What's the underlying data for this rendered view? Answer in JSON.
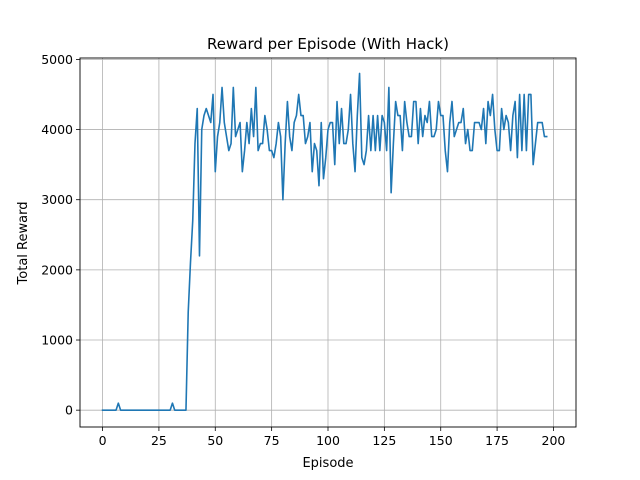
{
  "chart_data": {
    "type": "line",
    "title": "Reward per Episode (With Hack)",
    "xlabel": "Episode",
    "ylabel": "Total Reward",
    "xlim": [
      -10,
      210
    ],
    "ylim": [
      -240,
      5020
    ],
    "xticks": [
      0,
      25,
      50,
      75,
      100,
      125,
      150,
      175,
      200
    ],
    "yticks": [
      0,
      1000,
      2000,
      3000,
      4000,
      5000
    ],
    "grid": true,
    "line_color": "#1f77b4",
    "series": [
      {
        "x_start": 0,
        "values": [
          0,
          0,
          0,
          0,
          0,
          0,
          0,
          100,
          0,
          0,
          0,
          0,
          0,
          0,
          0,
          0,
          0,
          0,
          0,
          0,
          0,
          0,
          0,
          0,
          0,
          0,
          0,
          0,
          0,
          0,
          0,
          100,
          0,
          0,
          0,
          0,
          0,
          0,
          1400,
          2100,
          2700,
          3800,
          4300,
          2200,
          4000,
          4200,
          4300,
          4200,
          4100,
          4500,
          3400,
          3900,
          4100,
          4600,
          4100,
          3900,
          3700,
          3800,
          4600,
          3900,
          4000,
          4100,
          3400,
          3700,
          4100,
          3800,
          4300,
          3900,
          4600,
          3700,
          3800,
          3800,
          4200,
          4000,
          3700,
          3700,
          3600,
          3800,
          4100,
          3900,
          3000,
          3800,
          4400,
          3900,
          3700,
          4100,
          4200,
          4500,
          4200,
          4200,
          3800,
          3900,
          4100,
          3400,
          3800,
          3700,
          3200,
          4100,
          3300,
          3600,
          4000,
          4100,
          4100,
          3500,
          4400,
          3800,
          4300,
          3800,
          3800,
          4000,
          4500,
          3800,
          3400,
          4200,
          4800,
          3600,
          3500,
          3700,
          4200,
          3700,
          4200,
          3700,
          4200,
          3700,
          4200,
          4100,
          3700,
          4600,
          3100,
          3800,
          4400,
          4200,
          4200,
          3700,
          4400,
          4100,
          3900,
          3900,
          4400,
          4400,
          3800,
          4300,
          3900,
          4200,
          4100,
          4400,
          3900,
          3900,
          4000,
          4400,
          4200,
          4200,
          3700,
          3400,
          4100,
          4400,
          3900,
          4000,
          4100,
          4100,
          4300,
          3800,
          4000,
          3700,
          3700,
          4100,
          4100,
          4100,
          4000,
          4300,
          3800,
          4400,
          4200,
          4500,
          4000,
          3700,
          3700,
          4300,
          4000,
          4200,
          4100,
          3700,
          4200,
          4400,
          3600,
          4500,
          3700,
          4500,
          3700,
          4500,
          4500,
          3500,
          3800,
          4100,
          4100,
          4100,
          3900,
          3900
        ]
      }
    ]
  }
}
